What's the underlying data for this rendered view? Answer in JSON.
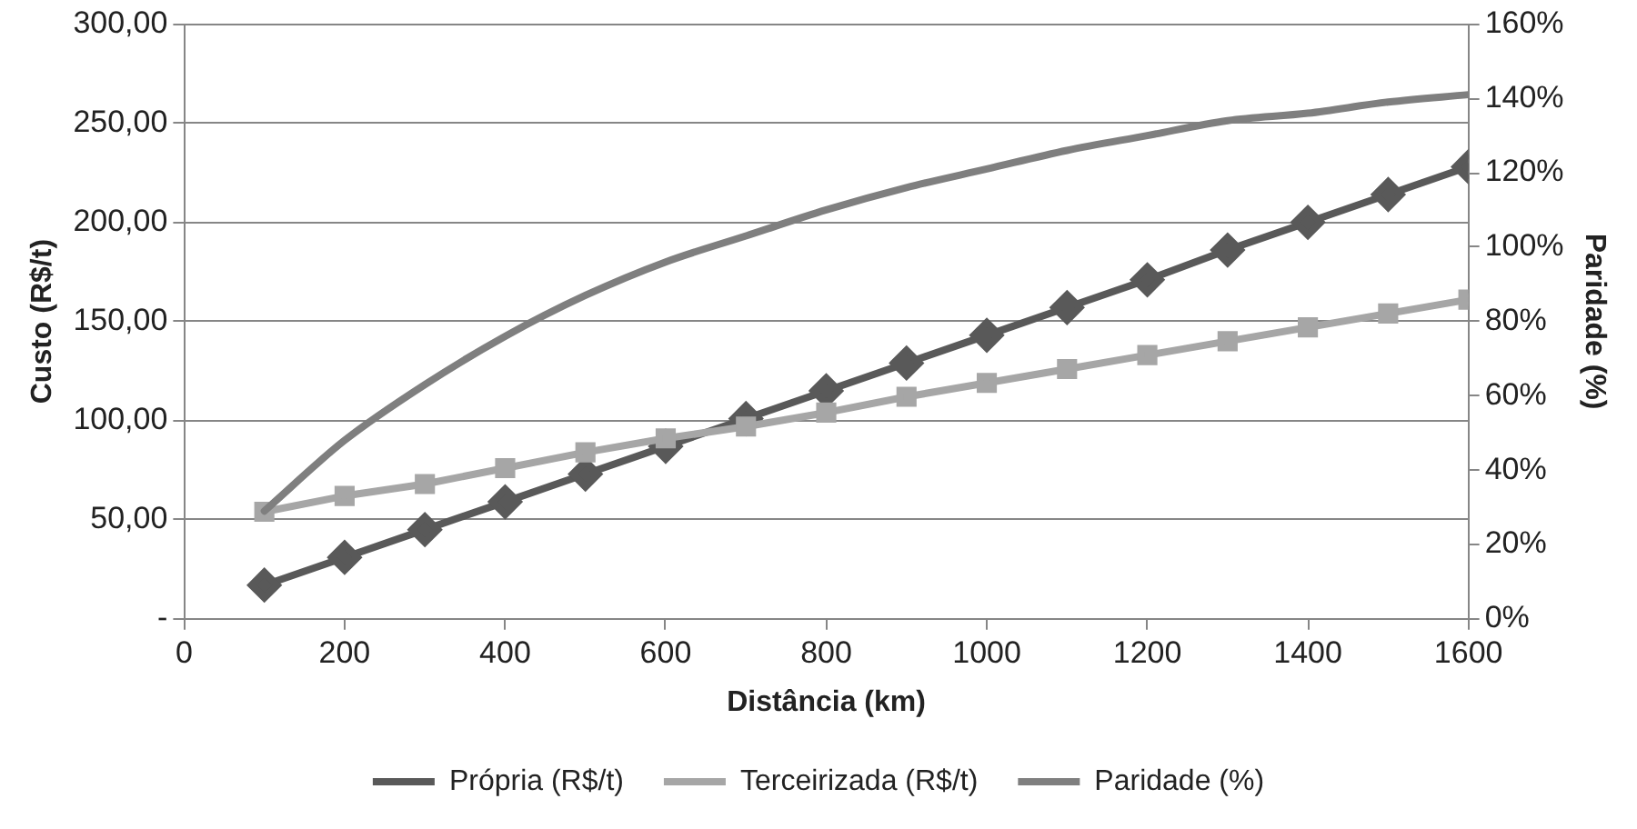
{
  "chart_data": {
    "type": "line",
    "xlabel": "Distância (km)",
    "ylabel": "Custo (R$/t)",
    "y2label": "Paridade (%)",
    "x": [
      100,
      200,
      300,
      400,
      500,
      600,
      700,
      800,
      900,
      1000,
      1100,
      1200,
      1300,
      1400,
      1500,
      1600
    ],
    "series": [
      {
        "name": "Própria (R$/t)",
        "color": "#595959",
        "marker": "diamond",
        "values": [
          17,
          31,
          45,
          59,
          73,
          87,
          101,
          115,
          129,
          143,
          157,
          171,
          186,
          200,
          214,
          228
        ]
      },
      {
        "name": "Terceirizada (R$/t)",
        "color": "#a6a6a6",
        "marker": "square",
        "values": [
          54,
          62,
          68,
          76,
          84,
          91,
          97,
          104,
          112,
          119,
          126,
          133,
          140,
          147,
          154,
          161
        ]
      },
      {
        "name": "Paridade (%)",
        "color": "#7f7f7f",
        "marker": "none",
        "axis": "y2",
        "values": [
          29,
          48,
          63,
          76,
          87,
          96,
          103,
          110,
          116,
          121,
          126,
          130,
          134,
          136,
          139,
          141
        ]
      }
    ],
    "xlim": [
      0,
      1600
    ],
    "xticks": [
      0,
      200,
      400,
      600,
      800,
      1000,
      1200,
      1400,
      1600
    ],
    "ylim": [
      0,
      300
    ],
    "yticks": [
      {
        "value": 0,
        "label": "-"
      },
      {
        "value": 50,
        "label": "50,00"
      },
      {
        "value": 100,
        "label": "100,00"
      },
      {
        "value": 150,
        "label": "150,00"
      },
      {
        "value": 200,
        "label": "200,00"
      },
      {
        "value": 250,
        "label": "250,00"
      },
      {
        "value": 300,
        "label": "300,00"
      }
    ],
    "y2lim": [
      0,
      160
    ],
    "y2ticks": [
      {
        "value": 0,
        "label": "0%"
      },
      {
        "value": 20,
        "label": "20%"
      },
      {
        "value": 40,
        "label": "40%"
      },
      {
        "value": 60,
        "label": "60%"
      },
      {
        "value": 80,
        "label": "80%"
      },
      {
        "value": 100,
        "label": "100%"
      },
      {
        "value": 120,
        "label": "120%"
      },
      {
        "value": 140,
        "label": "140%"
      },
      {
        "value": 160,
        "label": "160%"
      }
    ],
    "grid": "y",
    "legend": "bottom"
  }
}
